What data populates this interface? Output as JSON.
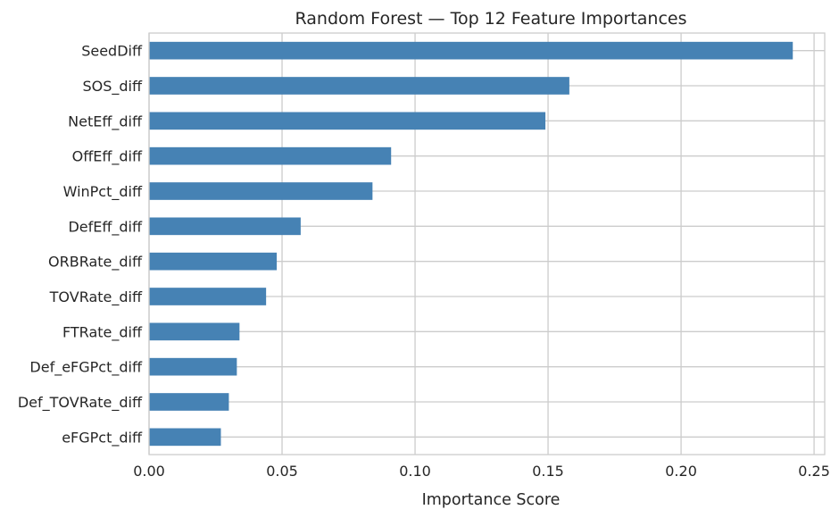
{
  "chart_data": {
    "type": "bar",
    "orientation": "horizontal",
    "title": "Random Forest — Top 12 Feature Importances",
    "xlabel": "Importance Score",
    "ylabel": "",
    "categories": [
      "SeedDiff",
      "SOS_diff",
      "NetEff_diff",
      "OffEff_diff",
      "WinPct_diff",
      "DefEff_diff",
      "ORBRate_diff",
      "TOVRate_diff",
      "FTRate_diff",
      "Def_eFGPct_diff",
      "Def_TOVRate_diff",
      "eFGPct_diff"
    ],
    "values": [
      0.242,
      0.158,
      0.149,
      0.091,
      0.084,
      0.057,
      0.048,
      0.044,
      0.034,
      0.033,
      0.03,
      0.027
    ],
    "xlim": [
      0.0,
      0.254
    ],
    "xticks": [
      0.0,
      0.05,
      0.1,
      0.15,
      0.2,
      0.25
    ],
    "xtick_labels": [
      "0.00",
      "0.05",
      "0.10",
      "0.15",
      "0.20",
      "0.25"
    ],
    "grid": true,
    "legend": "none",
    "bar_color": "#4682b4"
  }
}
